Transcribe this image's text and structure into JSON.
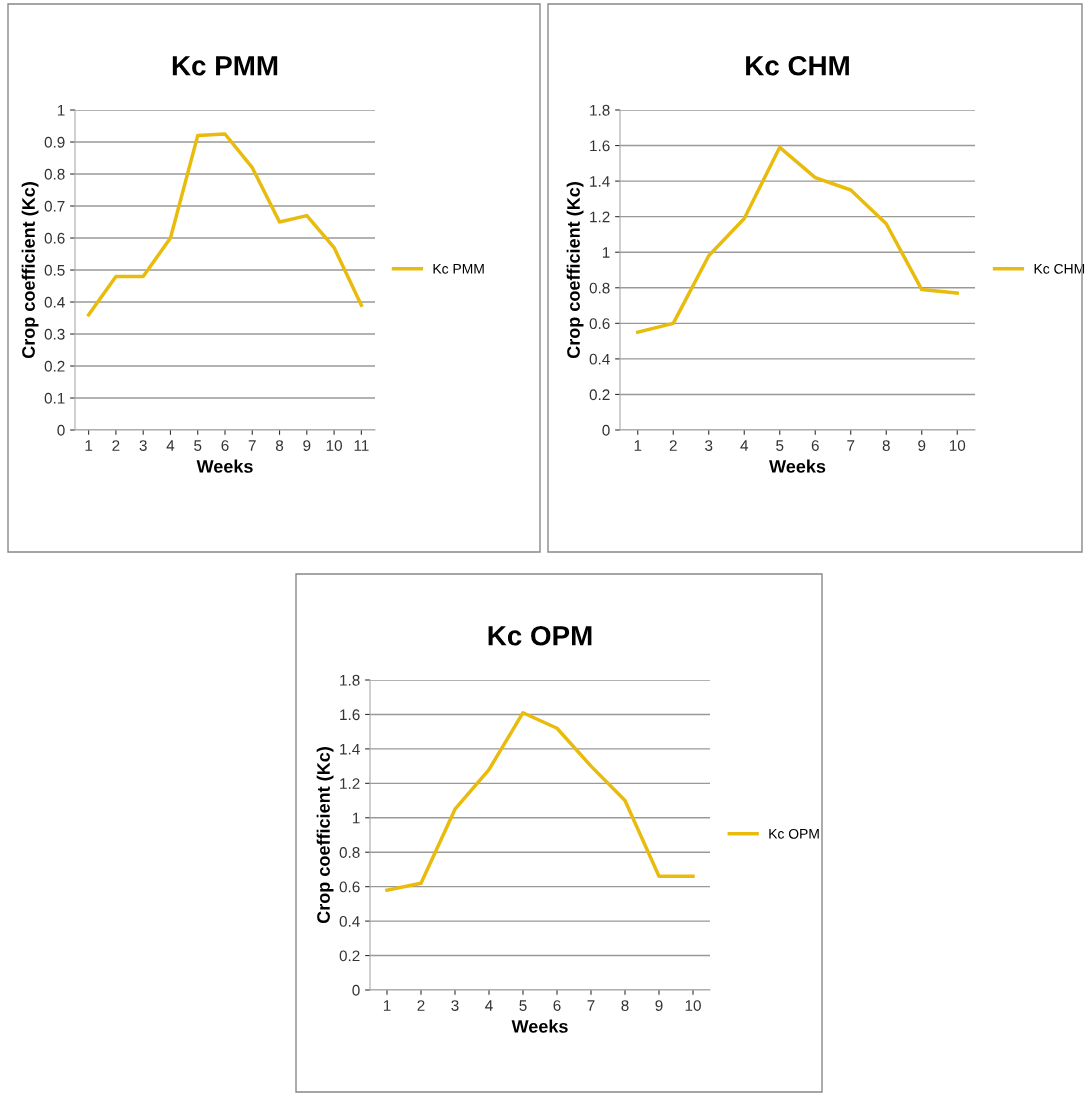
{
  "chart_data": [
    {
      "type": "line",
      "title": "Kc PMM",
      "xlabel": "Weeks",
      "ylabel": "Crop coefficient (Kc)",
      "categories": [
        "1",
        "2",
        "3",
        "4",
        "5",
        "6",
        "7",
        "8",
        "9",
        "10",
        "11"
      ],
      "series": [
        {
          "name": "Kc PMM",
          "color": "#e8bb0c",
          "values": [
            0.36,
            0.48,
            0.48,
            0.6,
            0.92,
            0.925,
            0.82,
            0.65,
            0.67,
            0.57,
            0.39
          ]
        }
      ],
      "ylim": [
        0,
        1
      ],
      "yticks": [
        0,
        0.1,
        0.2,
        0.3,
        0.4,
        0.5,
        0.6,
        0.7,
        0.8,
        0.9,
        1
      ],
      "grid": "y",
      "legend": "right",
      "marker": "none",
      "line_style": "solid"
    },
    {
      "type": "line",
      "title": "Kc CHM",
      "xlabel": "Weeks",
      "ylabel": "Crop coefficient (Kc)",
      "categories": [
        "1",
        "2",
        "3",
        "4",
        "5",
        "6",
        "7",
        "8",
        "9",
        "10"
      ],
      "series": [
        {
          "name": "Kc CHM",
          "color": "#e8bb0c",
          "values": [
            0.55,
            0.6,
            0.98,
            1.19,
            1.59,
            1.42,
            1.35,
            1.16,
            0.79,
            0.77
          ]
        }
      ],
      "ylim": [
        0,
        1.8
      ],
      "yticks": [
        0,
        0.2,
        0.4,
        0.6,
        0.8,
        1,
        1.2,
        1.4,
        1.6,
        1.8
      ],
      "grid": "y",
      "legend": "right",
      "marker": "none",
      "line_style": "solid"
    },
    {
      "type": "line",
      "title": "Kc OPM",
      "xlabel": "Weeks",
      "ylabel": "Crop coefficient (Kc)",
      "categories": [
        "1",
        "2",
        "3",
        "4",
        "5",
        "6",
        "7",
        "8",
        "9",
        "10"
      ],
      "series": [
        {
          "name": "Kc OPM",
          "color": "#e8bb0c",
          "values": [
            0.58,
            0.62,
            1.05,
            1.28,
            1.61,
            1.52,
            1.3,
            1.1,
            0.66,
            0.66
          ]
        }
      ],
      "ylim": [
        0,
        1.8
      ],
      "yticks": [
        0,
        0.2,
        0.4,
        0.6,
        0.8,
        1,
        1.2,
        1.4,
        1.6,
        1.8
      ],
      "grid": "y",
      "legend": "right",
      "marker": "none",
      "line_style": "solid"
    }
  ]
}
